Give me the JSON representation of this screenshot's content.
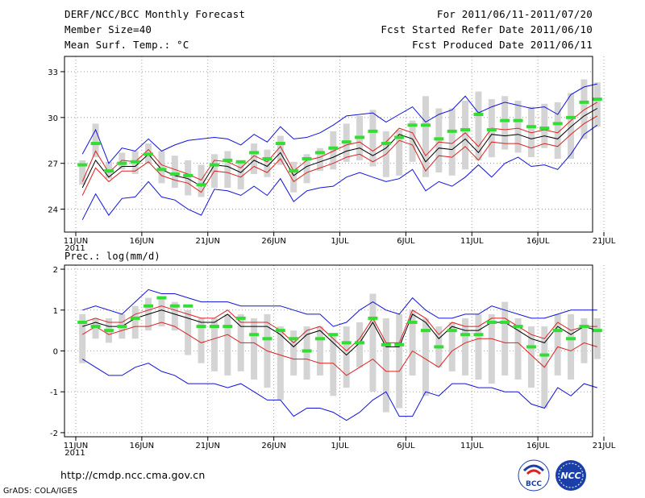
{
  "header": {
    "title": "DERF/NCC/BCC Monthly Forecast",
    "member_size": "Member Size=40",
    "variable": "Mean Surf. Temp.: °C",
    "period": "For 2011/06/11-2011/07/20",
    "started": "Fcst Started Refer Date 2011/06/10",
    "produced": "Fcst Produced Date 2011/06/11"
  },
  "footer": {
    "url": "http://cmdp.ncc.cma.gov.cn",
    "grads": "GrADS: COLA/IGES",
    "logo_left_text": "BCC",
    "logo_right_text": "NCC"
  },
  "colors": {
    "box": "#d4d4d4",
    "mean": "#33dd33",
    "median": "#000000",
    "band_inner": "#dd2222",
    "band_outer": "#1111dd",
    "grid": "#888888"
  },
  "chart_data": [
    {
      "type": "line",
      "title": "Mean Surf. Temp.: °C",
      "xlabel": "",
      "ylabel": "",
      "x_days": 40,
      "x_start": "2011-06-11",
      "xticks": [
        "11JUN",
        "16JUN",
        "21JUN",
        "26JUN",
        "1JUL",
        "6JUL",
        "11JUL",
        "16JUL",
        "21JUL"
      ],
      "xtick_days": [
        0,
        5,
        10,
        15,
        20,
        25,
        30,
        35,
        40
      ],
      "x_sublabel": "2011",
      "ylim": [
        22.5,
        34
      ],
      "yticks": [
        24,
        27,
        30,
        33
      ],
      "ytick_labels": [
        "24",
        "27",
        "30",
        "33"
      ],
      "grid": true,
      "series": [
        {
          "name": "max",
          "values": [
            23.3,
            25.0,
            23.6,
            24.7,
            24.8,
            25.8,
            24.8,
            24.6,
            24.0,
            23.6,
            25.3,
            25.2,
            24.9,
            25.5,
            24.9,
            26.0,
            24.5,
            25.2,
            25.4,
            25.5,
            26.1,
            26.4,
            26.1,
            25.8,
            26.0,
            26.6,
            25.2,
            25.8,
            25.5,
            26.1,
            26.9,
            26.1,
            27.0,
            27.4,
            26.8,
            26.9,
            26.6,
            27.6,
            28.9,
            29.5
          ]
        },
        {
          "name": "p10",
          "values": [
            24.9,
            26.7,
            25.8,
            26.5,
            26.5,
            27.1,
            26.2,
            25.9,
            25.7,
            25.1,
            26.5,
            26.4,
            26.1,
            26.8,
            26.4,
            27.3,
            25.8,
            26.4,
            26.7,
            27.0,
            27.4,
            27.6,
            27.1,
            27.6,
            28.5,
            28.2,
            26.5,
            27.5,
            27.4,
            28.1,
            27.2,
            28.4,
            28.3,
            28.3,
            28.0,
            28.3,
            28.1,
            28.9,
            29.6,
            30.1
          ]
        },
        {
          "name": "median",
          "values": [
            25.4,
            27.2,
            26.1,
            26.8,
            26.8,
            27.6,
            26.6,
            26.2,
            26.0,
            25.5,
            26.9,
            26.8,
            26.4,
            27.2,
            26.8,
            27.7,
            26.2,
            26.8,
            27.1,
            27.4,
            27.8,
            28.0,
            27.5,
            28.0,
            28.9,
            28.6,
            27.1,
            28.0,
            27.9,
            28.6,
            27.7,
            28.9,
            28.8,
            28.9,
            28.6,
            28.8,
            28.6,
            29.4,
            30.1,
            30.6
          ]
        },
        {
          "name": "p90",
          "values": [
            25.8,
            27.8,
            26.4,
            27.2,
            27.1,
            27.9,
            26.9,
            26.6,
            26.3,
            25.9,
            27.2,
            27.1,
            26.7,
            27.5,
            27.1,
            28.1,
            26.5,
            27.2,
            27.4,
            27.8,
            28.2,
            28.4,
            27.8,
            28.4,
            29.3,
            29.0,
            27.5,
            28.4,
            28.3,
            29.0,
            28.1,
            29.3,
            29.2,
            29.3,
            29.0,
            29.2,
            29.0,
            29.8,
            30.5,
            31.0
          ]
        },
        {
          "name": "min",
          "values": [
            27.6,
            29.2,
            27.0,
            28.0,
            27.8,
            28.6,
            27.8,
            28.2,
            28.5,
            28.6,
            28.7,
            28.6,
            28.2,
            28.9,
            28.4,
            29.4,
            28.6,
            28.7,
            29.0,
            29.5,
            30.1,
            30.2,
            30.3,
            29.7,
            30.2,
            30.7,
            29.7,
            30.2,
            30.5,
            31.4,
            30.3,
            30.7,
            31.0,
            30.8,
            30.6,
            30.7,
            30.2,
            31.5,
            32.0,
            32.2
          ]
        },
        {
          "name": "box_low",
          "values": [
            25.6,
            27.4,
            26.0,
            26.6,
            26.3,
            27.0,
            25.7,
            25.4,
            24.9,
            24.8,
            25.4,
            25.4,
            25.3,
            26.3,
            26.1,
            26.9,
            25.1,
            25.7,
            26.5,
            26.6,
            27.1,
            27.2,
            26.8,
            26.1,
            26.2,
            27.1,
            26.1,
            26.4,
            26.2,
            26.6,
            27.2,
            27.4,
            27.9,
            27.7,
            27.4,
            28.0,
            27.3,
            27.3,
            28.6,
            29.4
          ]
        },
        {
          "name": "box_high",
          "values": [
            27.2,
            29.6,
            27.1,
            27.7,
            27.8,
            28.3,
            27.8,
            27.5,
            27.2,
            26.9,
            27.6,
            27.8,
            27.2,
            28.3,
            27.9,
            28.8,
            27.1,
            27.6,
            28.0,
            29.1,
            29.6,
            30.1,
            30.5,
            29.1,
            29.2,
            29.8,
            31.4,
            30.6,
            30.6,
            31.1,
            31.7,
            31.2,
            31.4,
            31.1,
            30.7,
            30.9,
            31.0,
            31.6,
            32.5,
            32.3
          ]
        },
        {
          "name": "ens_mean",
          "values": [
            26.9,
            28.3,
            26.5,
            27.0,
            27.1,
            27.6,
            26.6,
            26.3,
            26.2,
            25.6,
            26.9,
            27.2,
            27.1,
            27.7,
            27.3,
            28.3,
            26.5,
            27.3,
            27.7,
            28.0,
            28.4,
            28.7,
            29.1,
            28.3,
            28.7,
            29.5,
            29.5,
            28.6,
            29.1,
            29.2,
            30.2,
            29.2,
            29.8,
            29.8,
            29.4,
            29.3,
            29.6,
            30.0,
            31.0,
            31.2
          ]
        }
      ]
    },
    {
      "type": "line",
      "title": "Prec.: log(mm/d)",
      "xlabel": "",
      "ylabel": "",
      "x_days": 40,
      "x_start": "2011-06-11",
      "xticks": [
        "11JUN",
        "16JUN",
        "21JUN",
        "26JUN",
        "1JUL",
        "6JUL",
        "11JUL",
        "16JUL",
        "21JUL"
      ],
      "xtick_days": [
        0,
        5,
        10,
        15,
        20,
        25,
        30,
        35,
        40
      ],
      "x_sublabel": "2011",
      "ylim": [
        -2.1,
        2.1
      ],
      "yticks": [
        -2,
        -1,
        0,
        1,
        2
      ],
      "ytick_labels": [
        "-2",
        "-1",
        "0",
        "1",
        "2"
      ],
      "grid": true,
      "series": [
        {
          "name": "min",
          "values": [
            -0.2,
            -0.4,
            -0.6,
            -0.6,
            -0.4,
            -0.3,
            -0.5,
            -0.6,
            -0.8,
            -0.8,
            -0.8,
            -0.9,
            -0.8,
            -1.0,
            -1.2,
            -1.2,
            -1.6,
            -1.4,
            -1.4,
            -1.5,
            -1.7,
            -1.5,
            -1.2,
            -1.0,
            -1.6,
            -1.6,
            -1.0,
            -1.1,
            -0.8,
            -0.8,
            -0.9,
            -0.9,
            -1.0,
            -1.0,
            -1.3,
            -1.4,
            -0.9,
            -1.1,
            -0.8,
            -0.9
          ]
        },
        {
          "name": "p10",
          "values": [
            0.4,
            0.6,
            0.4,
            0.5,
            0.6,
            0.6,
            0.7,
            0.6,
            0.4,
            0.2,
            0.3,
            0.4,
            0.2,
            0.2,
            0.0,
            -0.1,
            -0.2,
            -0.2,
            -0.3,
            -0.3,
            -0.6,
            -0.4,
            -0.2,
            -0.5,
            -0.5,
            0.0,
            -0.2,
            -0.4,
            0.0,
            0.2,
            0.3,
            0.3,
            0.2,
            0.2,
            -0.1,
            -0.4,
            0.1,
            0.0,
            0.2,
            0.1
          ]
        },
        {
          "name": "median",
          "values": [
            0.6,
            0.7,
            0.6,
            0.6,
            0.8,
            0.9,
            1.0,
            0.9,
            0.8,
            0.7,
            0.7,
            0.9,
            0.6,
            0.6,
            0.6,
            0.4,
            0.1,
            0.4,
            0.5,
            0.2,
            -0.1,
            0.2,
            0.7,
            0.1,
            0.1,
            0.9,
            0.7,
            0.3,
            0.6,
            0.5,
            0.5,
            0.7,
            0.7,
            0.5,
            0.3,
            0.2,
            0.6,
            0.4,
            0.6,
            0.5
          ]
        },
        {
          "name": "p90",
          "values": [
            0.7,
            0.8,
            0.7,
            0.7,
            0.9,
            1.0,
            1.1,
            1.0,
            0.9,
            0.8,
            0.8,
            1.0,
            0.7,
            0.7,
            0.7,
            0.5,
            0.2,
            0.5,
            0.6,
            0.3,
            0.0,
            0.3,
            0.8,
            0.2,
            0.2,
            1.0,
            0.8,
            0.4,
            0.7,
            0.6,
            0.6,
            0.8,
            0.8,
            0.6,
            0.4,
            0.3,
            0.7,
            0.5,
            0.6,
            0.6
          ]
        },
        {
          "name": "max",
          "values": [
            1.0,
            1.1,
            1.0,
            0.9,
            1.2,
            1.5,
            1.4,
            1.4,
            1.3,
            1.2,
            1.2,
            1.2,
            1.1,
            1.1,
            1.1,
            1.1,
            1.0,
            0.9,
            0.9,
            0.6,
            0.7,
            1.0,
            1.2,
            1.0,
            0.9,
            1.3,
            1.0,
            0.8,
            0.8,
            0.9,
            0.9,
            1.1,
            1.0,
            0.9,
            0.8,
            0.8,
            0.9,
            1.0,
            1.0,
            1.0
          ]
        },
        {
          "name": "box_low",
          "values": [
            -0.3,
            0.3,
            0.2,
            0.3,
            0.3,
            0.5,
            0.6,
            0.5,
            -0.1,
            -0.3,
            -0.5,
            -0.6,
            -0.5,
            -0.7,
            -0.9,
            -1.2,
            -0.6,
            -0.7,
            -0.6,
            -1.1,
            -0.9,
            -0.4,
            -1.0,
            -1.5,
            -1.4,
            -0.6,
            -1.1,
            -0.4,
            -0.5,
            -0.6,
            -0.7,
            -0.8,
            -0.6,
            -0.7,
            -0.9,
            -1.4,
            -0.6,
            -0.7,
            -0.3,
            -0.2
          ]
        },
        {
          "name": "box_high",
          "values": [
            0.9,
            0.8,
            0.8,
            0.9,
            1.1,
            1.3,
            1.3,
            1.2,
            1.0,
            0.8,
            0.8,
            0.9,
            0.9,
            0.8,
            0.9,
            0.6,
            0.5,
            0.6,
            0.6,
            0.4,
            0.6,
            0.7,
            1.4,
            0.8,
            0.9,
            1.0,
            0.8,
            0.6,
            0.7,
            0.8,
            0.9,
            0.9,
            1.2,
            0.8,
            0.6,
            0.6,
            0.9,
            0.9,
            0.8,
            0.8
          ]
        },
        {
          "name": "ens_mean",
          "values": [
            0.7,
            0.6,
            0.5,
            0.6,
            0.8,
            1.1,
            1.3,
            1.1,
            1.1,
            0.6,
            0.6,
            0.6,
            0.8,
            0.4,
            0.3,
            0.5,
            0.3,
            0.0,
            0.3,
            0.4,
            0.2,
            0.2,
            0.8,
            0.15,
            0.15,
            0.7,
            0.5,
            0.1,
            0.5,
            0.4,
            0.4,
            0.7,
            0.7,
            0.6,
            0.1,
            -0.1,
            0.5,
            0.3,
            0.6,
            0.5
          ]
        }
      ]
    }
  ]
}
